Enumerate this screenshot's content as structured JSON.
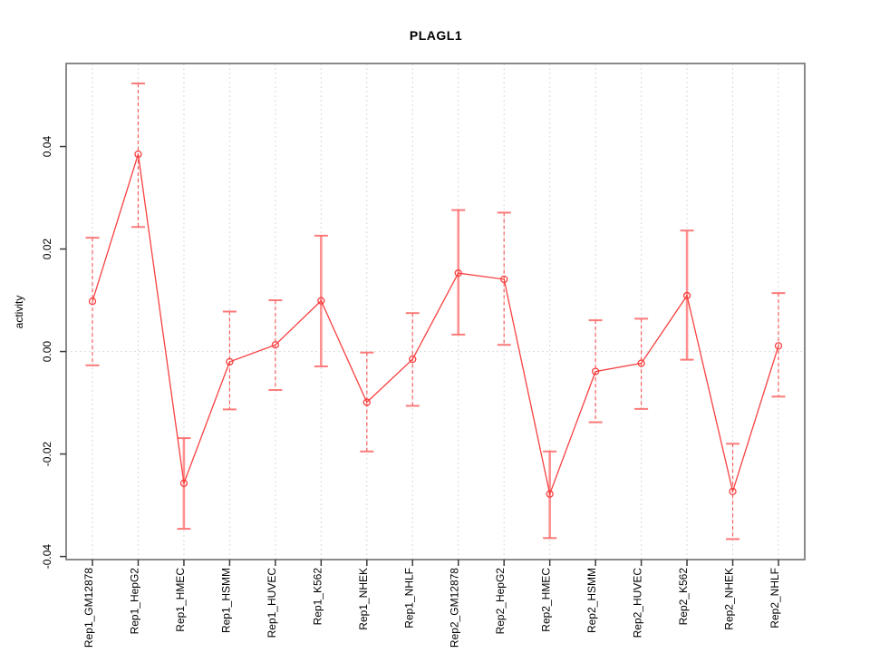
{
  "colors": {
    "line": "#f84040",
    "error_bar_dashed": "#f64545",
    "error_bar_solid": "#ff8585",
    "cap": "#fb6b6b",
    "grid": "#d9d9d9",
    "frame": "#8a8a8a",
    "tick": "#3a3a3a",
    "text": "#000000",
    "background": "#ffffff"
  },
  "chart_data": {
    "type": "line",
    "title": "PLAGL1",
    "xlabel": "",
    "ylabel": "activity",
    "legend_position": "none",
    "grid": "dotted vertical gridline at each category; dotted horizontal line at y=0",
    "ylim": [
      -0.0406,
      0.0562
    ],
    "yticks": [
      -0.04,
      -0.02,
      0.0,
      0.02,
      0.04
    ],
    "ytick_labels": [
      "-0.04",
      "-0.02",
      "0.00",
      "0.02",
      "0.04"
    ],
    "categories": [
      "Rep1_GM12878",
      "Rep1_HepG2",
      "Rep1_HMEC",
      "Rep1_HSMM",
      "Rep1_HUVEC",
      "Rep1_K562",
      "Rep1_NHEK",
      "Rep1_NHLF",
      "Rep2_GM12878",
      "Rep2_HepG2",
      "Rep2_HMEC",
      "Rep2_HSMM",
      "Rep2_HUVEC",
      "Rep2_K562",
      "Rep2_NHEK",
      "Rep2_NHLF"
    ],
    "series": [
      {
        "name": "activity",
        "marker": "open-circle",
        "values": [
          0.0098,
          0.0385,
          -0.0257,
          -0.002,
          0.0013,
          0.0099,
          -0.0099,
          -0.0015,
          0.0153,
          0.0141,
          -0.0278,
          -0.0039,
          -0.0023,
          0.0109,
          -0.0273,
          0.0011
        ],
        "err_low": [
          -0.0027,
          0.0243,
          -0.0346,
          -0.0113,
          -0.0075,
          -0.0029,
          -0.0195,
          -0.0106,
          0.0033,
          0.0013,
          -0.0364,
          -0.0138,
          -0.0112,
          -0.0016,
          -0.0366,
          -0.0088
        ],
        "err_high": [
          0.0222,
          0.0523,
          -0.0169,
          0.0078,
          0.01,
          0.0226,
          -0.0002,
          0.0075,
          0.0276,
          0.0271,
          -0.0195,
          0.0061,
          0.0064,
          0.0236,
          -0.018,
          0.0114
        ],
        "error_bar_styles": [
          "dashed",
          "dashed",
          "solid",
          "dashed",
          "dashed",
          "solid",
          "dashed",
          "dashed",
          "solid",
          "dashed",
          "solid",
          "dashed",
          "dashed",
          "solid",
          "dashed",
          "dashed"
        ]
      }
    ]
  }
}
